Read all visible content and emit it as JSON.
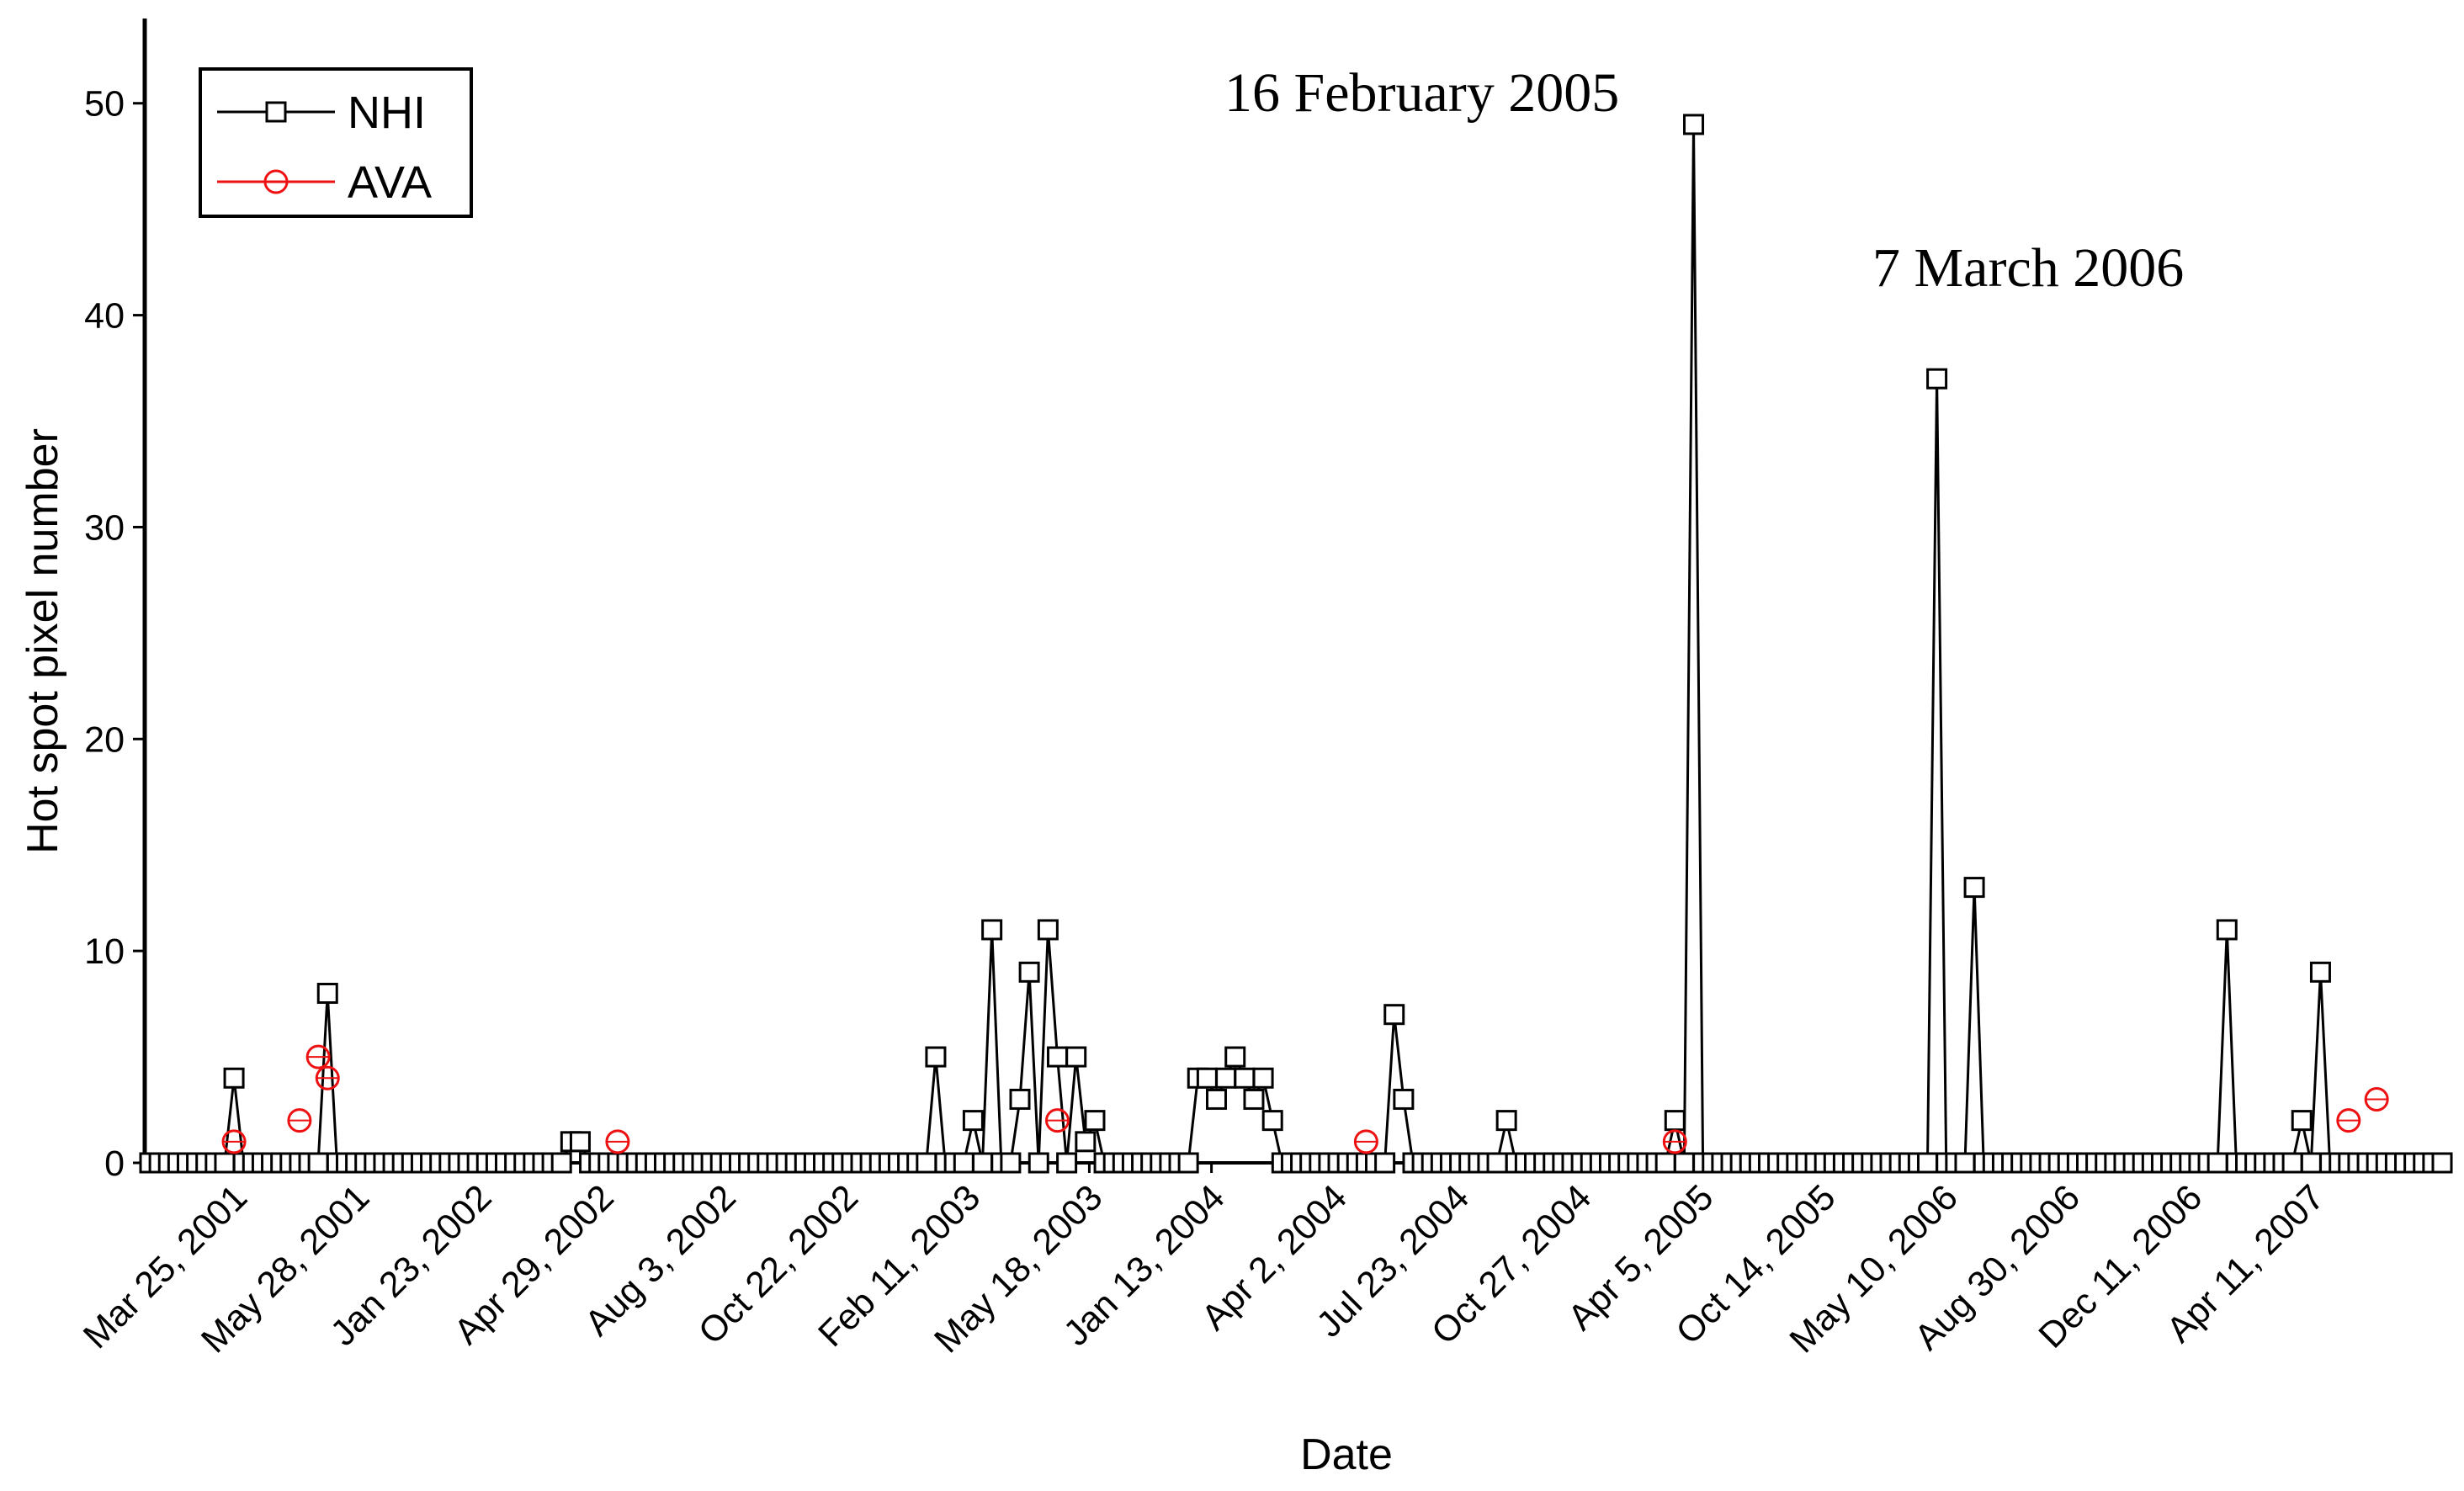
{
  "chart_data": {
    "type": "line",
    "xlabel": "Date",
    "ylabel": "Hot spot pixel number",
    "ylim": [
      0,
      54
    ],
    "yticks": [
      0,
      10,
      20,
      30,
      40,
      50
    ],
    "x_tick_labels": [
      "Mar 25, 2001",
      "May 28, 2001",
      "Jan 23, 2002",
      "Apr 29, 2002",
      "Aug 3, 2002",
      "Oct 22, 2002",
      "Feb 11, 2003",
      "May 18, 2003",
      "Jan 13, 2004",
      "Apr 2, 2004",
      "Jul 23, 2004",
      "Oct 27, 2004",
      "Apr 5, 2005",
      "Oct 14, 2005",
      "May 10, 2006",
      "Aug 30, 2006",
      "Dec 11, 2006",
      "Apr 11, 2007"
    ],
    "x_index_range": [
      0,
      245
    ],
    "series": [
      {
        "name": "NHI",
        "color": "#000000",
        "marker": "square",
        "nonzero_points": [
          [
            9,
            4
          ],
          [
            19,
            8
          ],
          [
            45,
            1
          ],
          [
            46,
            1
          ],
          [
            84,
            5
          ],
          [
            88,
            2
          ],
          [
            90,
            11
          ],
          [
            93,
            3
          ],
          [
            94,
            9
          ],
          [
            96,
            11
          ],
          [
            97,
            5
          ],
          [
            99,
            5
          ],
          [
            100,
            1
          ],
          [
            101,
            2
          ],
          [
            112,
            4
          ],
          [
            113,
            4
          ],
          [
            114,
            3
          ],
          [
            115,
            4
          ],
          [
            116,
            5
          ],
          [
            117,
            4
          ],
          [
            118,
            3
          ],
          [
            119,
            4
          ],
          [
            120,
            2
          ],
          [
            133,
            7
          ],
          [
            134,
            3
          ],
          [
            145,
            2
          ],
          [
            163,
            2
          ],
          [
            165,
            49
          ],
          [
            191,
            37
          ],
          [
            195,
            13
          ],
          [
            222,
            11
          ],
          [
            230,
            2
          ],
          [
            232,
            9
          ]
        ]
      },
      {
        "name": "AVA",
        "color": "#ee1111",
        "marker": "circle",
        "points": [
          [
            9,
            1
          ],
          [
            16,
            2
          ],
          [
            18,
            5
          ],
          [
            19,
            4
          ],
          [
            50,
            1
          ],
          [
            97,
            2
          ],
          [
            130,
            1
          ],
          [
            163,
            1
          ],
          [
            235,
            2
          ],
          [
            238,
            3
          ]
        ]
      }
    ],
    "legend_position": "top-left",
    "annotations": [
      {
        "text": "16 February 2005",
        "x": 165,
        "y": 49
      },
      {
        "text": "7 March 2006",
        "x": 191,
        "y": 37
      }
    ]
  }
}
